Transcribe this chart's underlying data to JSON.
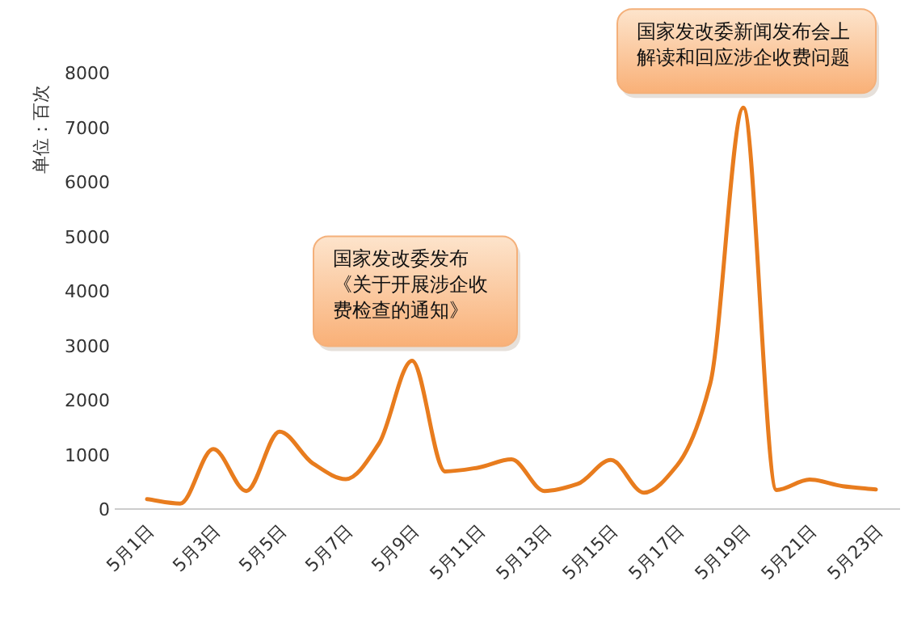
{
  "chart_data": {
    "type": "line",
    "ylabel": "单位：百次",
    "categories": [
      "5月1日",
      null,
      "5月3日",
      null,
      "5月5日",
      null,
      "5月7日",
      null,
      "5月9日",
      null,
      "5月11日",
      null,
      "5月13日",
      null,
      "5月15日",
      null,
      "5月17日",
      null,
      "5月19日",
      null,
      "5月21日",
      null,
      "5月23日"
    ],
    "series": [
      {
        "color": "#e87c1e",
        "values": [
          180,
          100,
          1100,
          330,
          1420,
          840,
          550,
          1200,
          2720,
          690,
          760,
          910,
          330,
          460,
          900,
          300,
          800,
          2300,
          7360,
          350,
          540,
          420,
          360
        ]
      }
    ],
    "ylim": [
      0,
      8000
    ],
    "yticks": [
      0,
      1000,
      2000,
      3000,
      4000,
      5000,
      6000,
      7000,
      8000
    ],
    "grid": false,
    "marker": "none",
    "line_style": "solid",
    "annotations": [
      {
        "text": "国家发改委发布《关于开展涉企收费检查的通知》",
        "x": "5月9日",
        "y": 2720
      },
      {
        "text": "国家发改委新闻发布会上解读和回应涉企收费问题",
        "x": "5月19日",
        "y": 7360
      }
    ]
  }
}
